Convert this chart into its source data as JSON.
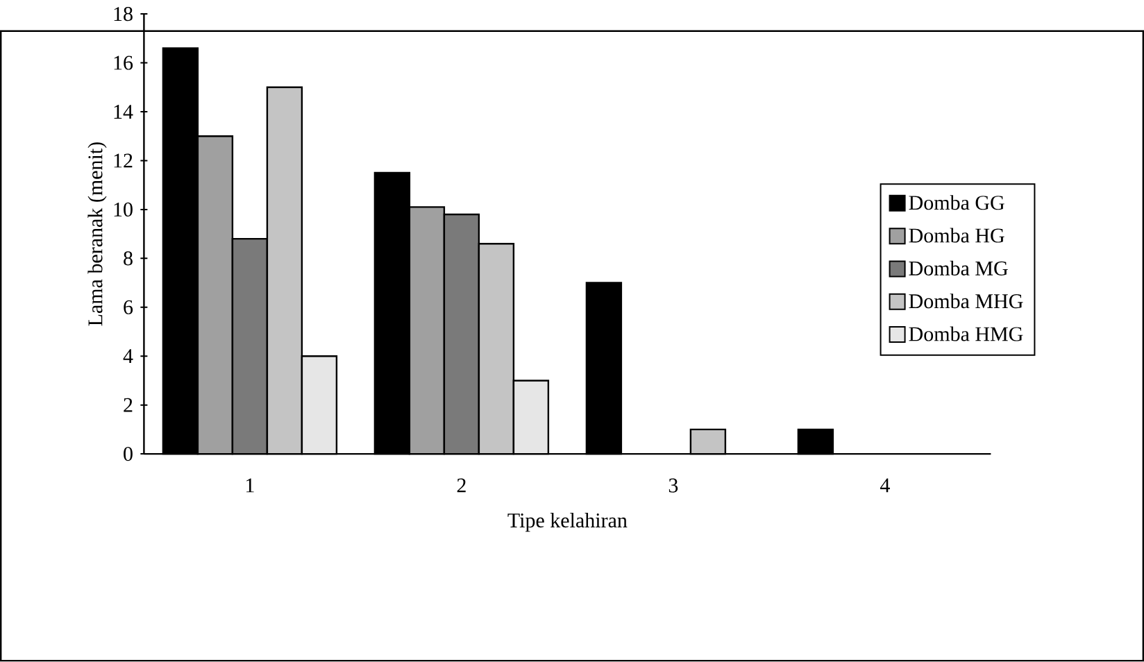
{
  "chart_data": {
    "type": "bar",
    "xlabel": "Tipe kelahiran",
    "ylabel": "Lama beranak (menit)",
    "categories": [
      "1",
      "2",
      "3",
      "4"
    ],
    "series": [
      {
        "name": "Domba GG",
        "color": "#000000",
        "values": [
          16.6,
          11.5,
          7,
          1
        ]
      },
      {
        "name": "Domba HG",
        "color": "#a0a0a0",
        "values": [
          13,
          10.1,
          null,
          null
        ]
      },
      {
        "name": "Domba MG",
        "color": "#7a7a7a",
        "values": [
          8.8,
          9.8,
          null,
          null
        ]
      },
      {
        "name": "Domba MHG",
        "color": "#c4c4c4",
        "values": [
          15,
          8.6,
          1,
          null
        ]
      },
      {
        "name": "Domba HMG",
        "color": "#e6e6e6",
        "values": [
          4,
          3,
          null,
          null
        ]
      }
    ],
    "ylim": [
      0,
      18
    ],
    "yticks": [
      0,
      2,
      4,
      6,
      8,
      10,
      12,
      14,
      16,
      18
    ],
    "legend": "right"
  }
}
